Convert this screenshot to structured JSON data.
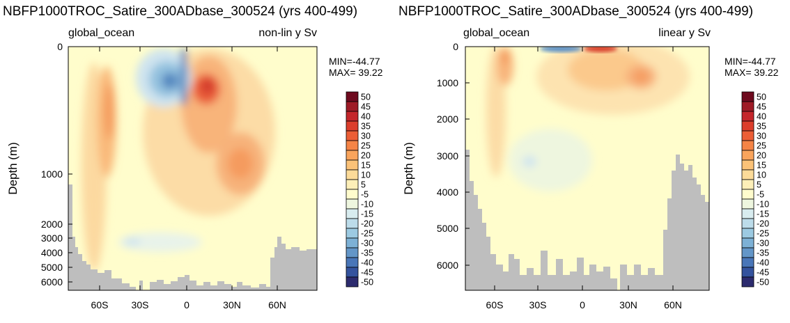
{
  "chart_data": [
    {
      "type": "heatmap",
      "title": "NBFP1000TROC_Satire_300ADbase_300524 (yrs 400-499)",
      "left_label": "global_ocean",
      "right_label": "non-lin y Sv",
      "ylabel": "Depth (m)",
      "y_scale": "non-linear",
      "ylim": [
        0,
        6500
      ],
      "yticks": [
        "0",
        "1000",
        "2000",
        "3000",
        "4000",
        "5000",
        "6000"
      ],
      "xticks": [
        "60S",
        "30S",
        "0",
        "30N",
        "60N"
      ],
      "min_label": "MIN=-44.77",
      "max_label": "MAX= 39.22"
    },
    {
      "type": "heatmap",
      "title": "NBFP1000TROC_Satire_300ADbase_300524 (yrs 400-499)",
      "left_label": "global_ocean",
      "right_label": "linear y Sv",
      "ylabel": "Depth (m)",
      "y_scale": "linear",
      "ylim": [
        0,
        6500
      ],
      "yticks": [
        "0",
        "1000",
        "2000",
        "3000",
        "4000",
        "5000",
        "6000"
      ],
      "xticks": [
        "60S",
        "30S",
        "0",
        "30N",
        "60N"
      ],
      "min_label": "MIN=-44.77",
      "max_label": "MAX= 39.22"
    }
  ],
  "colorbar": {
    "labels": [
      "50",
      "45",
      "40",
      "35",
      "30",
      "25",
      "20",
      "15",
      "10",
      "5",
      "-5",
      "-10",
      "-15",
      "-20",
      "-25",
      "-30",
      "-35",
      "-40",
      "-45",
      "-50"
    ],
    "colors": [
      "#6e0a1e",
      "#9e1b26",
      "#c4262b",
      "#dc3e2c",
      "#ec5e36",
      "#f58446",
      "#f9a45c",
      "#fbc278",
      "#fcdb99",
      "#fdefb8",
      "#fffccd",
      "#eef6df",
      "#d8ecef",
      "#bcdcea",
      "#9ccae2",
      "#7db1d6",
      "#6396c8",
      "#4976b8",
      "#34539e",
      "#2c2b6e"
    ]
  },
  "colors": {
    "background_fill": "#fffdcc",
    "land": "#bebebe"
  }
}
